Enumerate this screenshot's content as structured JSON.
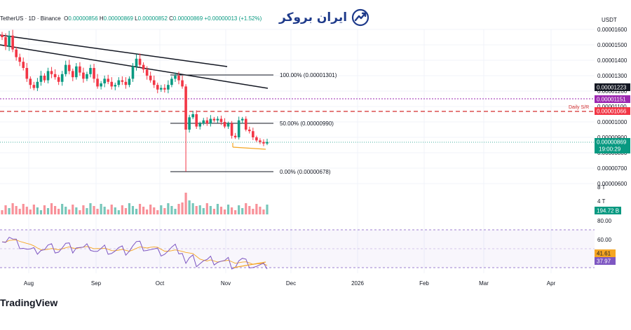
{
  "header": {
    "symbol": "TetherUS · 1D · Binance",
    "o_label": "O",
    "o": "0.00000856",
    "h_label": "H",
    "h": "0.00000869",
    "l_label": "L",
    "l": "0.00000852",
    "c_label": "C",
    "c": "0.00000869",
    "change": "+0.00000013 (+1.52%)"
  },
  "logo_text": "ایران بروکر",
  "currency": "USDT",
  "brand": "TradingView",
  "colors": {
    "up": "#089981",
    "down": "#f23645",
    "rsi": "#7e57c2",
    "rsi_ma": "#f5a623",
    "sr": "#d32f2f",
    "accent_purple": "#9c27b0"
  },
  "chart_data": {
    "type": "candlestick",
    "y_axis_labels": [
      "0.00001600",
      "0.00001500",
      "0.00001400",
      "0.00001300",
      "0.00001200",
      "0.00001100",
      "0.00001000",
      "0.00000900",
      "0.00000800",
      "0.00000700",
      "0.00000600"
    ],
    "x_axis_labels": [
      "Aug",
      "Sep",
      "Oct",
      "Nov",
      "Dec",
      "2026",
      "Feb",
      "Mar",
      "Apr"
    ],
    "fib_levels": [
      {
        "label": "100.00% (0.00001301)",
        "value": 1.301e-05
      },
      {
        "label": "50.00% (0.00000990)",
        "value": 9.9e-06
      },
      {
        "label": "0.00% (0.00000678)",
        "value": 6.78e-06
      }
    ],
    "price_tags": [
      {
        "text": "0.00001223",
        "color": "#131722"
      },
      {
        "text": "0.00001151",
        "color": "#9c27b0"
      },
      {
        "text": "0.00001066",
        "color": "#f23645"
      },
      {
        "text": "0.00000869",
        "color": "#089981"
      }
    ],
    "countdown": "19:00:29",
    "daily_sr_label": "Daily S/R",
    "daily_sr_value": 1.066e-05,
    "volume_label": "194.72 B",
    "volume_axis": [
      "8 T",
      "4 T"
    ],
    "rsi_axis": [
      "80.00",
      "60.00"
    ],
    "rsi_values": [
      "41.61",
      "37.97"
    ],
    "closes": [
      1.55e-05,
      1.49e-05,
      1.56e-05,
      1.47e-05,
      1.42e-05,
      1.39e-05,
      1.35e-05,
      1.28e-05,
      1.24e-05,
      1.22e-05,
      1.26e-05,
      1.3e-05,
      1.27e-05,
      1.33e-05,
      1.31e-05,
      1.29e-05,
      1.26e-05,
      1.31e-05,
      1.37e-05,
      1.33e-05,
      1.29e-05,
      1.36e-05,
      1.32e-05,
      1.28e-05,
      1.31e-05,
      1.35e-05,
      1.28e-05,
      1.23e-05,
      1.25e-05,
      1.28e-05,
      1.26e-05,
      1.23e-05,
      1.24e-05,
      1.27e-05,
      1.26e-05,
      1.24e-05,
      1.28e-05,
      1.36e-05,
      1.41e-05,
      1.37e-05,
      1.34e-05,
      1.3e-05,
      1.27e-05,
      1.24e-05,
      1.21e-05,
      1.22e-05,
      1.21e-05,
      1.24e-05,
      1.28e-05,
      1.3e-05,
      1.27e-05,
      1.23e-05,
      9.5e-06,
      1.03e-05,
      1.05e-05,
      9.7e-06,
      9.9e-06,
      1.01e-05,
      9.9e-06,
      1.02e-05,
      1.01e-05,
      1.02e-05,
      1e-05,
      9.7e-06,
      9.9e-06,
      9.1e-06,
      9e-06,
      1.01e-05,
      1.02e-05,
      9.5e-06,
      9.4e-06,
      9e-06,
      8.8e-06,
      8.7e-06,
      8.6e-06,
      8.7e-06
    ]
  }
}
